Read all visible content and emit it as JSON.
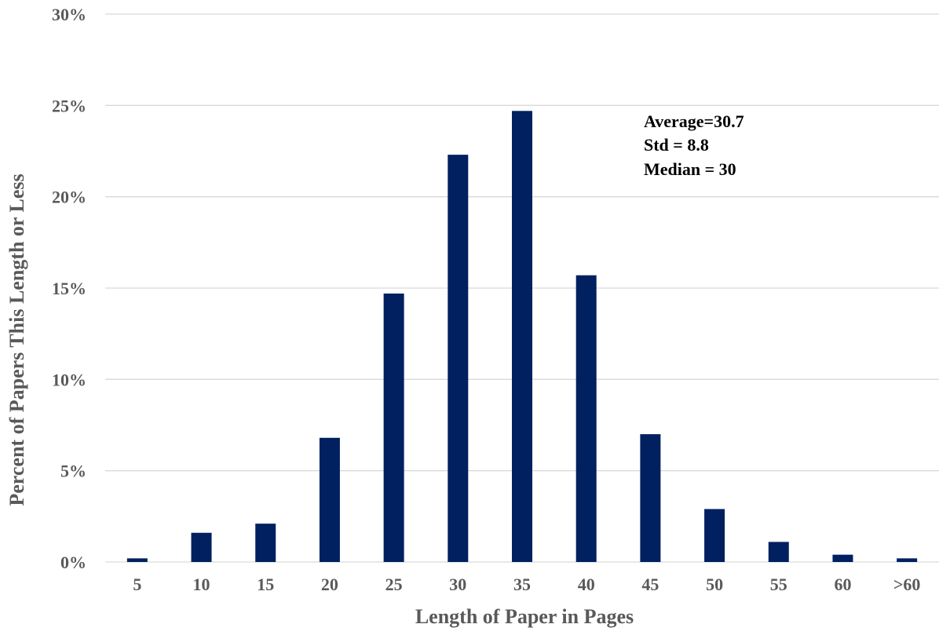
{
  "chart_data": {
    "type": "bar",
    "title": "",
    "xlabel": "Length of Paper in Pages",
    "ylabel": "Percent of Papers This Length or Less",
    "categories": [
      "5",
      "10",
      "15",
      "20",
      "25",
      "30",
      "35",
      "40",
      "45",
      "50",
      "55",
      "60",
      ">60"
    ],
    "series": [
      {
        "values": [
          0.2,
          1.6,
          2.1,
          6.8,
          14.7,
          22.3,
          24.7,
          15.7,
          7.0,
          2.9,
          1.1,
          0.4,
          0.2
        ]
      }
    ],
    "ylim": [
      0,
      30
    ],
    "yticks": [
      0,
      5,
      10,
      15,
      20,
      25,
      30
    ],
    "ytick_labels": [
      "0%",
      "5%",
      "10%",
      "15%",
      "20%",
      "25%",
      "30%"
    ],
    "grid": true,
    "bar_color": "#002060",
    "annotation": [
      "Average=30.7",
      "Std = 8.8",
      "Median = 30"
    ]
  }
}
